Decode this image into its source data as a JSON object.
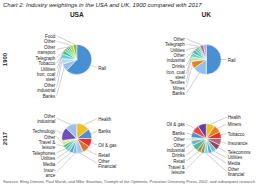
{
  "chart_data": {
    "type": "pie",
    "title": "Chart 2: Industry weightings in the USA and UK, 1900 compared with 2017",
    "annotations": [
      "Sources: Elroy Dimson, Paul Marsh, and Mike Staunton, Triumph of the Optimists, Princeton University Press, 2002, and subsequent research"
    ],
    "col_labels": [
      "USA",
      "UK"
    ],
    "row_labels": [
      "1900",
      "2017"
    ],
    "panels": [
      {
        "categories": [
          "Rail",
          "Banks",
          "Other\nindustrial",
          "Iron, coal\nsteel",
          "Utilities",
          "Tobacco",
          "Telegraph",
          "Other\ntransport",
          "Other",
          "Food"
        ],
        "values": [
          62,
          8,
          6,
          5,
          4,
          3,
          2,
          2,
          4,
          4
        ],
        "colors": [
          "#4a8fd4",
          "#92c0e8",
          "#b8d8f0",
          "#5ecfcf",
          "#40c0a0",
          "#70d870",
          "#50b860",
          "#38a050",
          "#a8d860",
          "#88c030"
        ]
      },
      {
        "categories": [
          "Rail",
          "Banks",
          "Mines",
          "Textiles",
          "Iron, coal\nsteel",
          "Drinks",
          "Other\nindustrial",
          "Utilities",
          "Telegraph",
          "Other",
          null
        ],
        "values": [
          50,
          15,
          8,
          5,
          4,
          4,
          3,
          2,
          2,
          4,
          3
        ],
        "colors": [
          "#4a8fd4",
          "#92c0e8",
          "#e8821e",
          "#c8e8a0",
          "#5ecfcf",
          "#40c0a0",
          "#6baed6",
          "#50b860",
          "#70d870",
          "#9e70c0",
          "#c890e0"
        ]
      },
      {
        "categories": [
          "Health",
          "Banks",
          "Oil & gas",
          "Retail",
          "Other\nFinancial",
          "Insur-\nance",
          "Media",
          "Utilities",
          "Telephones",
          "Travel &\nleisure",
          "Other",
          null,
          "Technology",
          "Other\nindustrial"
        ],
        "values": [
          14,
          10,
          9,
          8,
          7,
          4,
          4,
          3,
          3,
          3,
          3,
          2,
          14,
          12
        ],
        "colors": [
          "#f0c020",
          "#4a8fd4",
          "#e83030",
          "#e07030",
          "#a0c8f0",
          "#80b8e8",
          "#60a0d0",
          "#5ecfcf",
          "#40c0a0",
          "#50b860",
          "#c0e890",
          "#f0e040",
          "#7050b8",
          "#a0c0e8"
        ]
      },
      {
        "categories": [
          "Health",
          "Miners",
          "Tobacco",
          "Insurance",
          "Telecomms",
          "Utilities",
          "Media",
          "Other\nfinancial",
          "Travel &\nleisure",
          "Retail",
          "Drinks",
          "Other\nindustrial",
          "Other",
          "Banks",
          "Oil & gas",
          null
        ],
        "values": [
          9,
          8,
          7,
          7,
          6,
          5,
          4,
          4,
          4,
          4,
          7,
          5,
          3,
          6,
          8,
          9
        ],
        "colors": [
          "#f0c020",
          "#e8821e",
          "#e83030",
          "#c06080",
          "#a04060",
          "#5ecfcf",
          "#60a0d0",
          "#a0c8f0",
          "#50b860",
          "#e07030",
          "#40c0a0",
          "#80a8c8",
          "#c0e890",
          "#4a8fd4",
          "#e84848",
          "#6040a0"
        ]
      }
    ]
  }
}
